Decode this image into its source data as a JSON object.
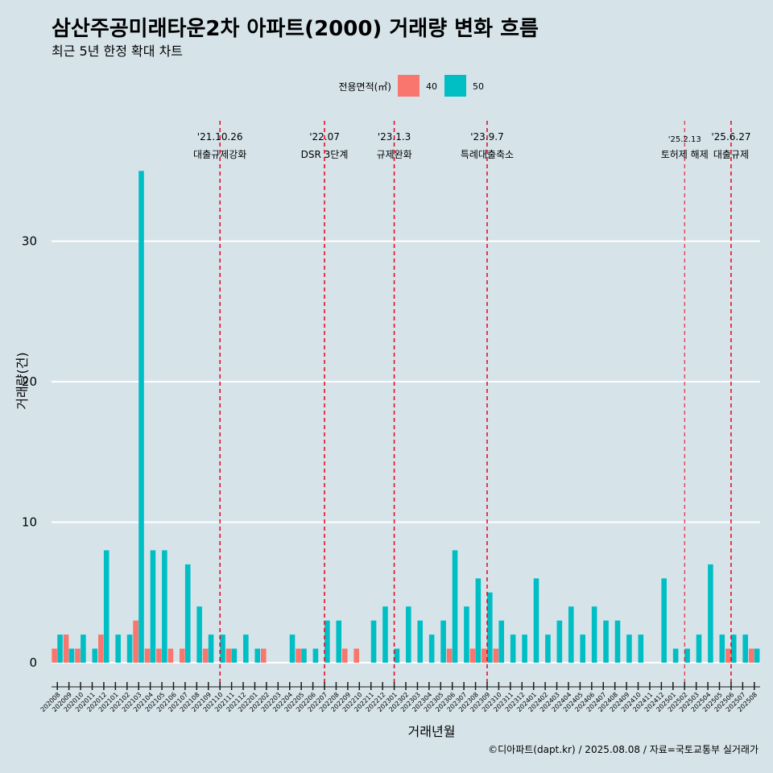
{
  "header": {
    "title": "삼산주공미래타운2차 아파트(2000) 거래량 변화 흐름",
    "subtitle": "최근 5년 한정 확대 차트"
  },
  "caption": "©디아파트(dapt.kr) / 2025.08.08 / 자료=국토교통부 실거래가",
  "colors": {
    "area_40": "#f8766d",
    "area_50": "#00bfc4",
    "vline": "#e8001c",
    "background": "#d6e4ea",
    "grid": "#ffffff"
  },
  "chart_data": {
    "type": "bar",
    "xlabel": "거래년월",
    "ylabel": "거래량(건)",
    "ylim": [
      0,
      35
    ],
    "yticks": [
      0,
      10,
      20,
      30
    ],
    "legend": {
      "title": "전용면적(㎡)",
      "position": "top"
    },
    "categories": [
      "202008",
      "202009",
      "202010",
      "202011",
      "202012",
      "202101",
      "202102",
      "202103",
      "202104",
      "202105",
      "202106",
      "202107",
      "202108",
      "202109",
      "202110",
      "202111",
      "202112",
      "202201",
      "202202",
      "202203",
      "202204",
      "202205",
      "202206",
      "202207",
      "202208",
      "202209",
      "202210",
      "202211",
      "202212",
      "202301",
      "202302",
      "202303",
      "202304",
      "202305",
      "202306",
      "202307",
      "202308",
      "202309",
      "202310",
      "202311",
      "202312",
      "202401",
      "202402",
      "202403",
      "202404",
      "202405",
      "202406",
      "202407",
      "202408",
      "202409",
      "202410",
      "202411",
      "202412",
      "202501",
      "202502",
      "202503",
      "202504",
      "202505",
      "202506",
      "202507",
      "202508"
    ],
    "series": [
      {
        "name": "40",
        "values": [
          1,
          2,
          1,
          0,
          2,
          0,
          0,
          3,
          1,
          1,
          1,
          1,
          0,
          1,
          0,
          1,
          0,
          0,
          1,
          0,
          0,
          1,
          0,
          0,
          0,
          1,
          1,
          0,
          0,
          0,
          0,
          0,
          0,
          0,
          1,
          0,
          1,
          1,
          1,
          0,
          0,
          0,
          0,
          0,
          0,
          0,
          0,
          0,
          0,
          0,
          0,
          0,
          0,
          0,
          0,
          0,
          0,
          0,
          1,
          0,
          1
        ]
      },
      {
        "name": "50",
        "values": [
          2,
          1,
          2,
          1,
          8,
          2,
          2,
          35,
          8,
          8,
          0,
          7,
          4,
          2,
          2,
          1,
          2,
          1,
          0,
          0,
          2,
          1,
          1,
          3,
          3,
          0,
          0,
          3,
          4,
          1,
          4,
          3,
          2,
          3,
          8,
          4,
          6,
          5,
          3,
          2,
          2,
          6,
          2,
          3,
          4,
          2,
          4,
          3,
          3,
          2,
          2,
          0,
          6,
          1,
          1,
          2,
          7,
          2,
          2,
          2,
          1
        ]
      }
    ],
    "annotations": [
      {
        "date": "'21.10.26",
        "label": "대출규제강화",
        "at": "202110"
      },
      {
        "date": "'22.07",
        "label": "DSR 3단계",
        "at": "202207"
      },
      {
        "date": "'23.1.3",
        "label": "규제완화",
        "at": "202301"
      },
      {
        "date": "'23.9.7",
        "label": "특례대출축소",
        "at": "202309"
      },
      {
        "date": "'25.2.13",
        "label": "토허제 해제",
        "at": "202502",
        "small": true
      },
      {
        "date": "'25.6.27",
        "label": "대출규제",
        "at": "202506"
      }
    ]
  }
}
